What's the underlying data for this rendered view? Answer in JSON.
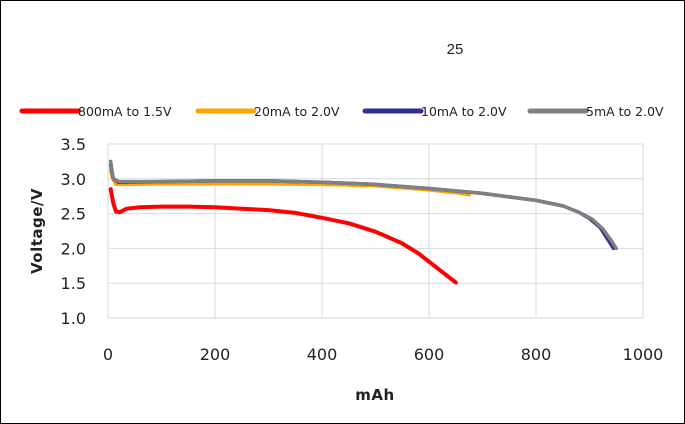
{
  "chart_data": {
    "type": "line",
    "title": "25",
    "xlabel": "mAh",
    "ylabel": "Voltage/V",
    "xlim": [
      0,
      1000
    ],
    "ylim": [
      1.0,
      3.5
    ],
    "x_ticks": [
      0,
      200,
      400,
      600,
      800,
      1000
    ],
    "y_ticks": [
      1.0,
      1.5,
      2.0,
      2.5,
      3.0,
      3.5
    ],
    "x_tick_labels": [
      "0",
      "200",
      "400",
      "600",
      "800",
      "1000"
    ],
    "y_tick_labels": [
      "1.0",
      "1.5",
      "2.0",
      "2.5",
      "3.0",
      "3.5"
    ],
    "grid": true,
    "legend_position": "top",
    "series": [
      {
        "name": "800mA to 1.5V",
        "color": "#ff0000",
        "points": [
          [
            5,
            2.85
          ],
          [
            10,
            2.65
          ],
          [
            15,
            2.53
          ],
          [
            22,
            2.52
          ],
          [
            35,
            2.57
          ],
          [
            60,
            2.59
          ],
          [
            100,
            2.6
          ],
          [
            150,
            2.6
          ],
          [
            200,
            2.59
          ],
          [
            250,
            2.57
          ],
          [
            300,
            2.55
          ],
          [
            350,
            2.51
          ],
          [
            400,
            2.44
          ],
          [
            450,
            2.36
          ],
          [
            500,
            2.24
          ],
          [
            550,
            2.07
          ],
          [
            580,
            1.93
          ],
          [
            610,
            1.75
          ],
          [
            630,
            1.63
          ],
          [
            650,
            1.51
          ]
        ]
      },
      {
        "name": "20mA to 2.0V",
        "color": "#ffa500",
        "points": [
          [
            5,
            3.12
          ],
          [
            8,
            3.02
          ],
          [
            15,
            2.92
          ],
          [
            30,
            2.92
          ],
          [
            100,
            2.93
          ],
          [
            200,
            2.93
          ],
          [
            300,
            2.93
          ],
          [
            400,
            2.92
          ],
          [
            500,
            2.9
          ],
          [
            600,
            2.84
          ],
          [
            650,
            2.8
          ],
          [
            675,
            2.77
          ]
        ]
      },
      {
        "name": "10mA to 2.0V",
        "color": "#2e3192",
        "points": [
          [
            5,
            3.2
          ],
          [
            10,
            3.0
          ],
          [
            20,
            2.95
          ],
          [
            100,
            2.96
          ],
          [
            200,
            2.97
          ],
          [
            300,
            2.97
          ],
          [
            400,
            2.95
          ],
          [
            500,
            2.92
          ],
          [
            600,
            2.86
          ],
          [
            700,
            2.79
          ],
          [
            800,
            2.69
          ],
          [
            850,
            2.61
          ],
          [
            880,
            2.52
          ],
          [
            900,
            2.43
          ],
          [
            920,
            2.3
          ],
          [
            935,
            2.12
          ],
          [
            945,
            2.0
          ]
        ]
      },
      {
        "name": "5mA to 2.0V",
        "color": "#808080",
        "points": [
          [
            5,
            3.25
          ],
          [
            10,
            3.0
          ],
          [
            20,
            2.96
          ],
          [
            100,
            2.96
          ],
          [
            200,
            2.97
          ],
          [
            300,
            2.97
          ],
          [
            400,
            2.95
          ],
          [
            500,
            2.92
          ],
          [
            600,
            2.86
          ],
          [
            700,
            2.79
          ],
          [
            800,
            2.69
          ],
          [
            850,
            2.61
          ],
          [
            880,
            2.52
          ],
          [
            905,
            2.42
          ],
          [
            925,
            2.28
          ],
          [
            940,
            2.12
          ],
          [
            950,
            2.0
          ]
        ]
      }
    ]
  }
}
